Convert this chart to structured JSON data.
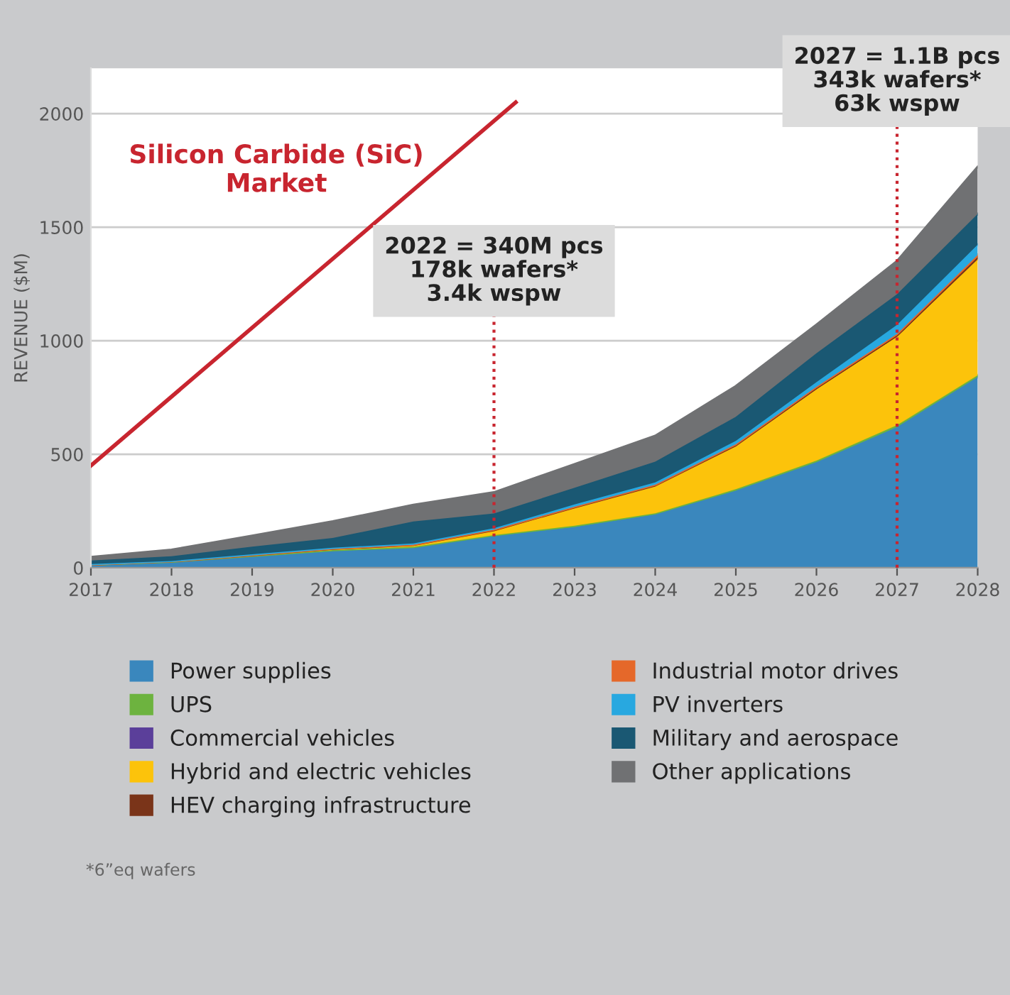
{
  "chart_data": {
    "type": "area",
    "stacked": true,
    "title": "Silicon Carbide (SiC)\nMarket",
    "ylabel": "REVENUE ($M)",
    "x": [
      2017,
      2018,
      2019,
      2020,
      2021,
      2022,
      2023,
      2024,
      2025,
      2026,
      2027,
      2028
    ],
    "xlim": [
      2017,
      2028
    ],
    "xticks": [
      2017,
      2018,
      2019,
      2020,
      2021,
      2022,
      2023,
      2024,
      2025,
      2026,
      2027,
      2028
    ],
    "ylim": [
      0,
      2200
    ],
    "yticks": [
      0,
      500,
      1000,
      1500,
      2000
    ],
    "grid": "y",
    "legend": "bottom",
    "series": [
      {
        "name": "Power supplies",
        "color": "#3a87bd",
        "values": [
          12,
          25,
          50,
          75,
          88,
          140,
          180,
          235,
          340,
          465,
          620,
          840
        ]
      },
      {
        "name": "UPS",
        "color": "#6db33f",
        "values": [
          2,
          2,
          3,
          3,
          4,
          4,
          5,
          5,
          6,
          7,
          8,
          8
        ]
      },
      {
        "name": "Commercial vehicles",
        "color": "#5b3f9a",
        "values": [
          null,
          null,
          null,
          null,
          null,
          null,
          null,
          null,
          null,
          null,
          null,
          null
        ]
      },
      {
        "name": "Hybrid and electric vehicles",
        "color": "#fcc30b",
        "values": [
          1,
          2,
          3,
          5,
          8,
          20,
          80,
          120,
          190,
          315,
          390,
          510
        ]
      },
      {
        "name": "HEV charging infrastructure",
        "color": "#7a3419",
        "values": [
          0,
          0,
          0,
          1,
          1,
          2,
          2,
          3,
          4,
          5,
          6,
          10
        ]
      },
      {
        "name": "Industrial motor drives",
        "color": "#e5682a",
        "values": [
          0,
          0,
          1,
          1,
          1,
          2,
          2,
          3,
          4,
          5,
          6,
          10
        ]
      },
      {
        "name": "PV inverters",
        "color": "#28a8e0",
        "values": [
          1,
          1,
          2,
          3,
          5,
          6,
          10,
          10,
          15,
          20,
          40,
          45
        ]
      },
      {
        "name": "Military and aerospace",
        "color": "#1a5873",
        "values": [
          16,
          21,
          34,
          43,
          97,
          65,
          73,
          91,
          106,
          128,
          135,
          135
        ]
      },
      {
        "name": "Other applications",
        "color": "#707173",
        "values": [
          15,
          28,
          48,
          73,
          73,
          93,
          104,
          114,
          135,
          125,
          146,
          208
        ]
      },
      {
        "type": "line",
        "color": "#c8252f",
        "x": [
          2017,
          2022.27
        ],
        "values": [
          450,
          2050
        ]
      }
    ],
    "ref_lines": [
      {
        "axis": "x",
        "value": 2022,
        "label": "2022 = 340M pcs\n178k wafers*\n3.4k wspw",
        "color": "#c8252f",
        "line_style": "dotted"
      },
      {
        "axis": "x",
        "value": 2027,
        "label": "2027 = 1.1B pcs\n343k wafers*\n63k wspw",
        "color": "#c8252f",
        "line_style": "dotted"
      }
    ],
    "annotations": [
      "*6”eq wafers"
    ]
  }
}
